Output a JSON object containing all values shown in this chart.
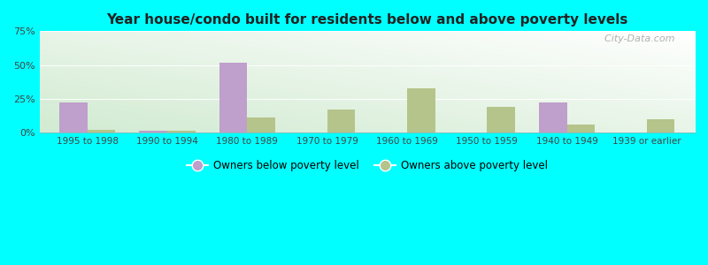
{
  "title": "Year house/condo built for residents below and above poverty levels",
  "categories": [
    "1995 to 1998",
    "1990 to 1994",
    "1980 to 1989",
    "1970 to 1979",
    "1960 to 1969",
    "1950 to 1959",
    "1940 to 1949",
    "1939 or earlier"
  ],
  "below_poverty": [
    22,
    1,
    52,
    0,
    0,
    0,
    22,
    0
  ],
  "above_poverty": [
    2,
    1,
    11,
    17,
    33,
    19,
    6,
    10
  ],
  "below_color": "#bf9fcc",
  "above_color": "#b5c48a",
  "background_color": "#00ffff",
  "ylim": [
    0,
    75
  ],
  "yticks": [
    0,
    25,
    50,
    75
  ],
  "ytick_labels": [
    "0%",
    "25%",
    "50%",
    "75%"
  ],
  "legend_below": "Owners below poverty level",
  "legend_above": "Owners above poverty level",
  "bar_width": 0.35
}
